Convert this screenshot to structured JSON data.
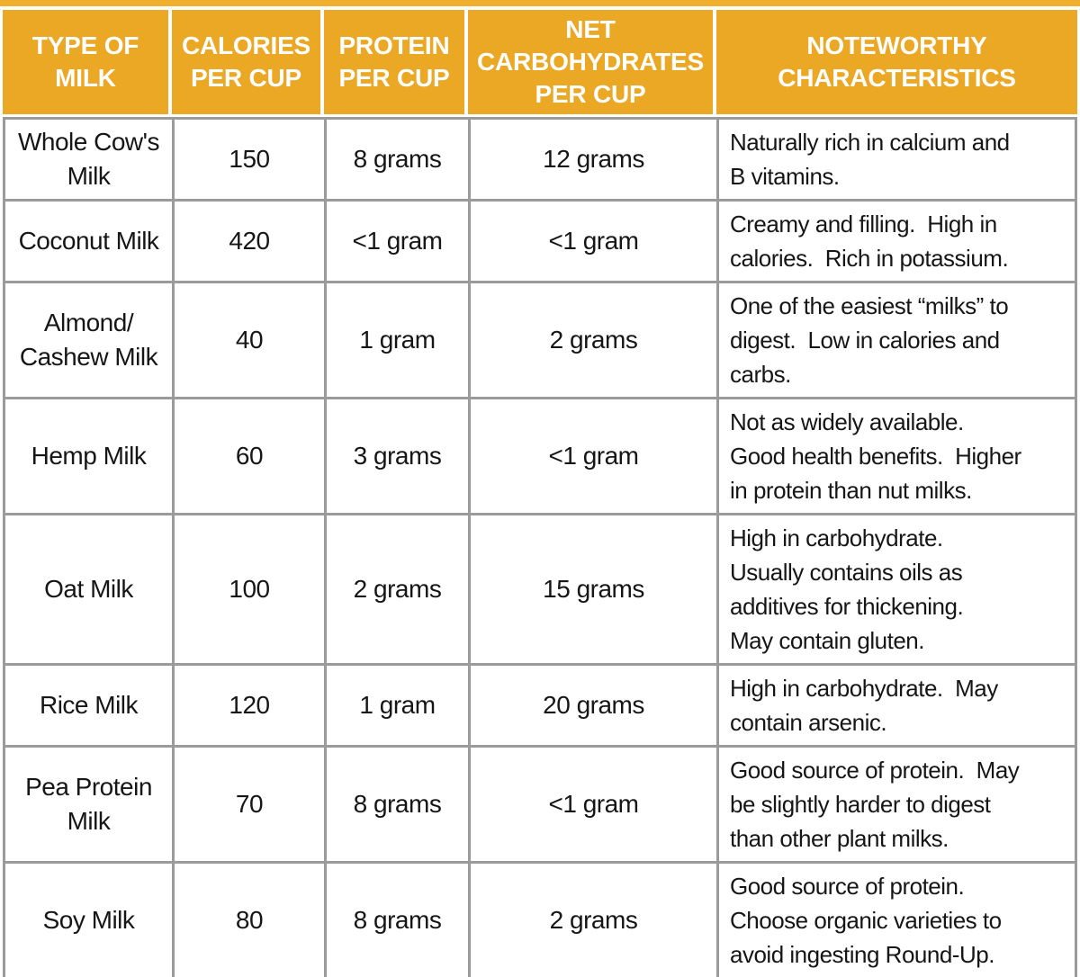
{
  "colors": {
    "header_bg": "#EBA824",
    "accent_strip": "#F0AF2C",
    "grid_border": "#9B9B9B",
    "header_text": "#FFFFFF",
    "body_text": "#161616"
  },
  "table": {
    "headers": {
      "milk": "TYPE OF\nMILK",
      "calories": "CALORIES\nPER CUP",
      "protein": "PROTEIN\nPER CUP",
      "carbs": "NET\nCARBOHYDRATES\nPER CUP",
      "notes": "NOTEWORTHY\nCHARACTERISTICS"
    },
    "rows": [
      {
        "milk": "Whole Cow's\nMilk",
        "calories": "150",
        "protein": "8 grams",
        "carbs": "12 grams",
        "notes": "Naturally rich in calcium and\nB vitamins."
      },
      {
        "milk": "Coconut Milk",
        "calories": "420",
        "protein": "<1 gram",
        "carbs": "<1 gram",
        "notes": "Creamy and filling.  High in\ncalories.  Rich in potassium."
      },
      {
        "milk": "Almond/\nCashew Milk",
        "calories": "40",
        "protein": "1 gram",
        "carbs": "2 grams",
        "notes": "One of the easiest “milks” to\ndigest.  Low in calories and\ncarbs."
      },
      {
        "milk": "Hemp Milk",
        "calories": "60",
        "protein": "3 grams",
        "carbs": "<1 gram",
        "notes": "Not as widely available.\nGood health benefits.  Higher\nin protein than nut milks."
      },
      {
        "milk": "Oat Milk",
        "calories": "100",
        "protein": "2 grams",
        "carbs": "15 grams",
        "notes": "High in carbohydrate.\nUsually contains oils as\nadditives for thickening.\nMay contain gluten."
      },
      {
        "milk": "Rice Milk",
        "calories": "120",
        "protein": "1 gram",
        "carbs": "20 grams",
        "notes": "High in carbohydrate.  May\ncontain arsenic."
      },
      {
        "milk": "Pea Protein\nMilk",
        "calories": "70",
        "protein": "8 grams",
        "carbs": "<1 gram",
        "notes": "Good source of protein.  May\nbe slightly harder to digest\nthan other plant milks."
      },
      {
        "milk": "Soy Milk",
        "calories": "80",
        "protein": "8 grams",
        "carbs": "2 grams",
        "notes": "Good source of protein.\nChoose organic varieties to\navoid ingesting Round-Up."
      }
    ]
  },
  "chart_data": {
    "type": "table",
    "title": "",
    "columns": [
      "TYPE OF MILK",
      "CALORIES PER CUP",
      "PROTEIN PER CUP",
      "NET CARBOHYDRATES PER CUP",
      "NOTEWORTHY CHARACTERISTICS"
    ],
    "rows": [
      [
        "Whole Cow's Milk",
        150,
        "8 grams",
        "12 grams",
        "Naturally rich in calcium and B vitamins."
      ],
      [
        "Coconut Milk",
        420,
        "<1 gram",
        "<1 gram",
        "Creamy and filling.  High in calories.  Rich in potassium."
      ],
      [
        "Almond/Cashew Milk",
        40,
        "1 gram",
        "2 grams",
        "One of the easiest “milks” to digest.  Low in calories and carbs."
      ],
      [
        "Hemp Milk",
        60,
        "3 grams",
        "<1 gram",
        "Not as widely available.  Good health benefits.  Higher in protein than nut milks."
      ],
      [
        "Oat Milk",
        100,
        "2 grams",
        "15 grams",
        "High in carbohydrate.  Usually contains oils as additives for thickening.  May contain gluten."
      ],
      [
        "Rice Milk",
        120,
        "1 gram",
        "20 grams",
        "High in carbohydrate.  May contain arsenic."
      ],
      [
        "Pea Protein Milk",
        70,
        "8 grams",
        "<1 gram",
        "Good source of protein.  May be slightly harder to digest than other plant milks."
      ],
      [
        "Soy Milk",
        80,
        "8 grams",
        "2 grams",
        "Good source of protein.  Choose organic varieties to avoid ingesting Round-Up."
      ]
    ]
  }
}
